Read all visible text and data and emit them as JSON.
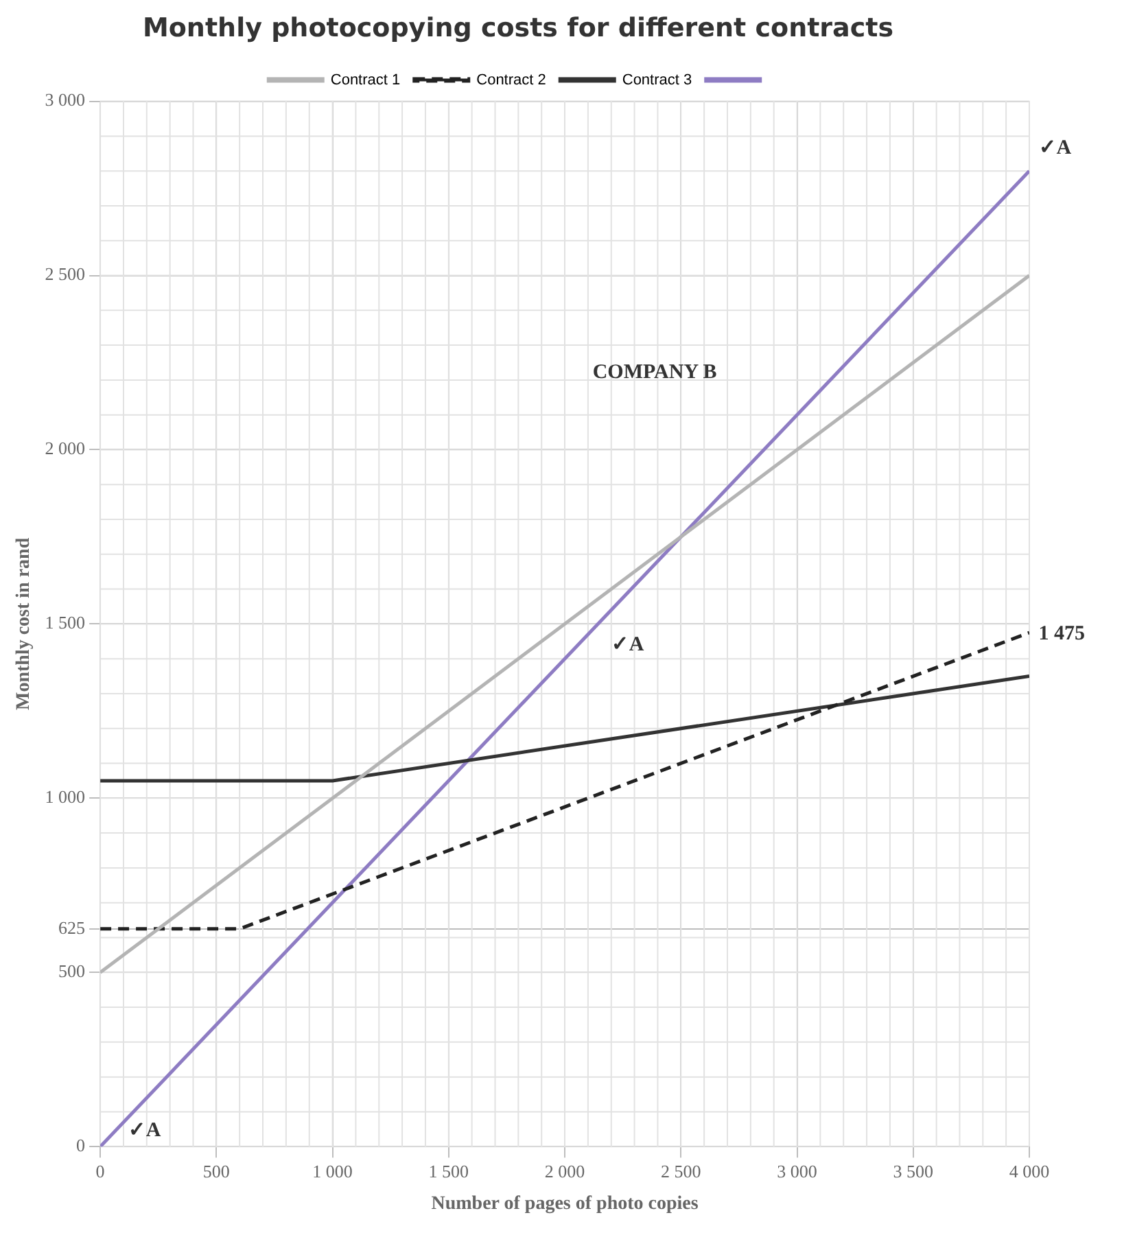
{
  "chart_data": {
    "type": "line",
    "title": "Monthly photocopying costs for different contracts",
    "xlabel": "Number of pages of photo copies",
    "ylabel": "Monthly cost in rand",
    "xlim": [
      0,
      4000
    ],
    "ylim": [
      0,
      3000
    ],
    "xticks": [
      0,
      500,
      {
        "value": 1000,
        "label": "1 000"
      },
      {
        "value": 1500,
        "label": "1 500"
      },
      {
        "value": 2000,
        "label": "2 000"
      },
      {
        "value": 2500,
        "label": "2 500"
      },
      {
        "value": 3000,
        "label": "3 000"
      },
      {
        "value": 3500,
        "label": "3 500"
      },
      {
        "value": 4000,
        "label": "4 000"
      }
    ],
    "yticks": [
      0,
      500,
      625,
      {
        "value": 1000,
        "label": "1 000"
      },
      {
        "value": 1500,
        "label": "1 500"
      },
      {
        "value": 2000,
        "label": "2 000"
      },
      {
        "value": 2500,
        "label": "2 500"
      },
      {
        "value": 3000,
        "label": "3 000"
      }
    ],
    "grid": true,
    "legend": "top",
    "marker": "none",
    "series": [
      {
        "name": "Contract 1",
        "color": "#b4b4b4",
        "line_style": "solid",
        "x": [
          0,
          4000
        ],
        "values": [
          500,
          2500
        ]
      },
      {
        "name": "Contract 2",
        "color": "#222222",
        "line_style": "dashed",
        "x": [
          0,
          600,
          4000
        ],
        "values": [
          625,
          625,
          1475
        ]
      },
      {
        "name": "Contract 3",
        "color": "#333333",
        "line_style": "solid",
        "x": [
          0,
          1000,
          4000
        ],
        "values": [
          1050,
          1050,
          1350
        ]
      },
      {
        "color": "#8e7cc3",
        "line_style": "solid",
        "x": [
          0,
          4000
        ],
        "values": [
          0,
          2800
        ]
      }
    ],
    "annotations": [
      "✓A",
      "✓A",
      "✓A",
      "1 475",
      "COMPANY B"
    ]
  }
}
